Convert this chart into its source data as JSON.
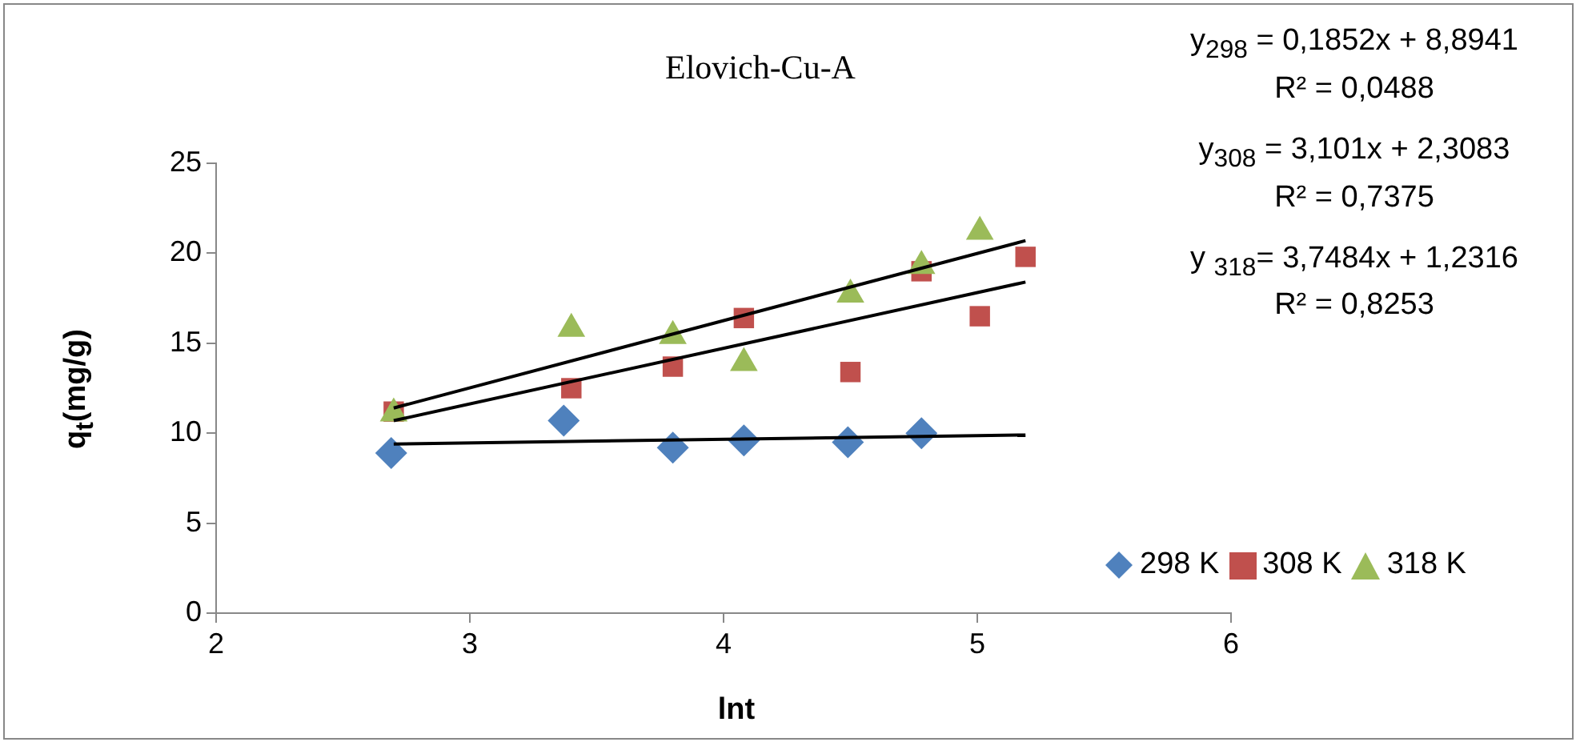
{
  "chart_data": {
    "type": "scatter",
    "title": "Elovich-Cu-A",
    "xlabel": "lnt",
    "ylabel": "q$_{t}$(mg/g)",
    "xlim": [
      2,
      6
    ],
    "xticks": [
      2,
      3,
      4,
      5,
      6
    ],
    "ylim": [
      0,
      25
    ],
    "yticks": [
      0,
      5,
      10,
      15,
      20,
      25
    ],
    "grid": false,
    "legend": "right",
    "series": [
      {
        "name": "298 K",
        "color": "#4f81bd",
        "marker": "diamond",
        "x": [
          2.69,
          3.37,
          3.8,
          4.08,
          4.49,
          4.78
        ],
        "values": [
          8.9,
          10.7,
          9.2,
          9.6,
          9.5,
          10.0
        ]
      },
      {
        "name": "308 K",
        "color": "#c0504d",
        "marker": "square",
        "x": [
          2.7,
          3.4,
          3.8,
          4.08,
          4.5,
          4.78,
          5.01,
          5.19
        ],
        "values": [
          11.2,
          12.5,
          13.7,
          16.4,
          13.4,
          19.0,
          16.5,
          19.8
        ]
      },
      {
        "name": "318 K",
        "color": "#9bbb59",
        "marker": "triangle",
        "x": [
          2.7,
          3.4,
          3.8,
          4.08,
          4.5,
          4.78,
          5.01
        ],
        "values": [
          11.1,
          15.8,
          15.4,
          13.9,
          17.7,
          19.3,
          21.2
        ]
      },
      {
        "type": "line",
        "color": "#000000",
        "marker": "none",
        "x": [
          2.7,
          5.19
        ],
        "values": [
          9.4,
          9.9
        ]
      },
      {
        "type": "line",
        "color": "#000000",
        "marker": "none",
        "x": [
          2.7,
          5.19
        ],
        "values": [
          10.7,
          18.4
        ]
      },
      {
        "type": "line",
        "color": "#000000",
        "marker": "none",
        "x": [
          2.7,
          5.19
        ],
        "values": [
          11.4,
          20.7
        ]
      }
    ],
    "annotations": [
      "y$_{298}$ = 0,1852x + 8,8941",
      "R² = 0,0488",
      "y$_{308}$ = 3,101x + 2,3083",
      "R² = 0,7375",
      "y $_{318}$= 3,7484x + 1,2316",
      "R² = 0,8253"
    ]
  }
}
